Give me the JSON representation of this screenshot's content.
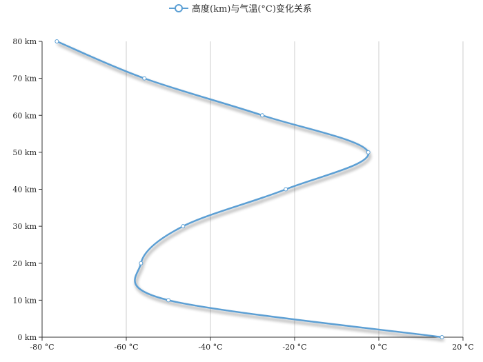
{
  "chart_data": {
    "type": "line",
    "title": "",
    "xlabel": "",
    "ylabel": "",
    "series": [
      {
        "name": "高度(km)与气温(°C)变化关系",
        "x": [
          15,
          -50,
          -56.5,
          -46.5,
          -22.1,
          -2.5,
          -27.7,
          -55.7,
          -76.5
        ],
        "y": [
          0,
          10,
          20,
          30,
          40,
          50,
          60,
          70,
          80
        ]
      }
    ],
    "xlim": [
      -80,
      20
    ],
    "ylim": [
      0,
      80
    ],
    "x_ticks": [
      "-80 °C",
      "-60 °C",
      "-40 °C",
      "-20 °C",
      "0 °C",
      "20 °C"
    ],
    "y_ticks": [
      "0 km",
      "10 km",
      "20 km",
      "30 km",
      "40 km",
      "50 km",
      "60 km",
      "70 km",
      "80 km"
    ],
    "x_tick_values": [
      -80,
      -60,
      -40,
      -20,
      0,
      20
    ],
    "y_tick_values": [
      0,
      10,
      20,
      30,
      40,
      50,
      60,
      70,
      80
    ],
    "grid": {
      "x": true,
      "y": false
    },
    "legend": "top",
    "line_color": "#5b9fd4",
    "grid_color": "#cccccc",
    "axis_color": "#333333"
  }
}
